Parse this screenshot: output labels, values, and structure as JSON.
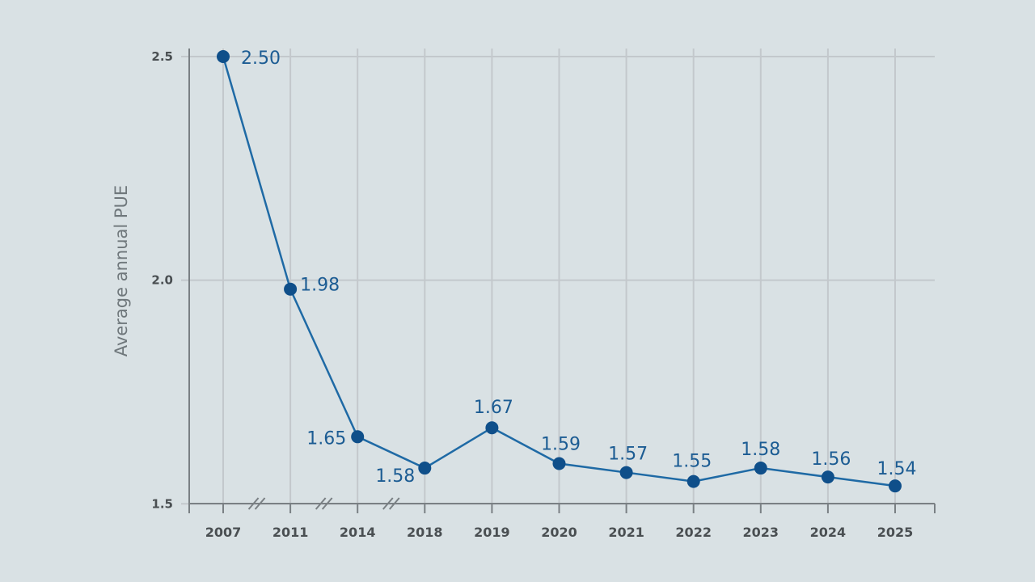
{
  "chart_data": {
    "type": "line",
    "ylabel": "Average annual PUE",
    "xlabel": "",
    "title": "",
    "categories": [
      "2007",
      "2011",
      "2014",
      "2018",
      "2019",
      "2020",
      "2021",
      "2022",
      "2023",
      "2024",
      "2025"
    ],
    "series": [
      {
        "values": [
          2.5,
          1.98,
          1.65,
          1.58,
          1.67,
          1.59,
          1.57,
          1.55,
          1.58,
          1.56,
          1.54
        ]
      }
    ],
    "data_labels": [
      "2.50",
      "1.98",
      "1.65",
      "1.58",
      "1.67",
      "1.59",
      "1.57",
      "1.55",
      "1.58",
      "1.56",
      "1.54"
    ],
    "y_ticks": [
      1.5,
      2.0,
      2.5
    ],
    "y_tick_labels": [
      "1.5",
      "2.0",
      "2.5"
    ],
    "ylim": [
      1.47,
      2.5
    ],
    "axis_breaks_after": [
      "2007",
      "2011",
      "2014"
    ],
    "grid": true,
    "legend": "none",
    "colors": {
      "line": "#1f6aa5",
      "marker": "#0f4f8a",
      "label": "#1c5c93",
      "background": "#d9e1e4",
      "grid": "#c3c8cc"
    }
  }
}
